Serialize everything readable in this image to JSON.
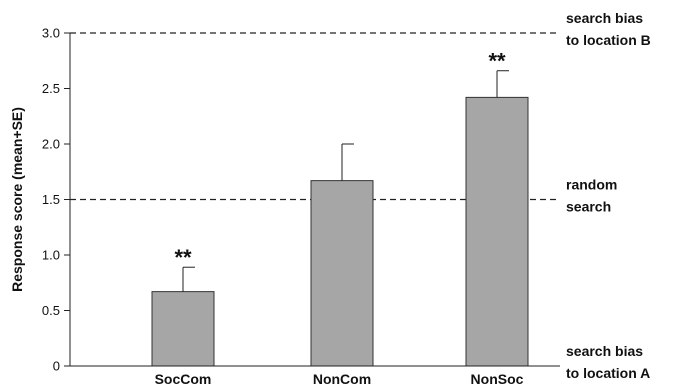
{
  "chart_data": {
    "type": "bar",
    "title": "",
    "xlabel": "",
    "ylabel": "Response score (mean+SE)",
    "categories": [
      "SocCom",
      "NonCom",
      "NonSoc"
    ],
    "values": [
      0.67,
      1.67,
      2.42
    ],
    "errors": [
      0.22,
      0.33,
      0.24
    ],
    "significance": [
      "**",
      "",
      "**"
    ],
    "ylim": [
      0,
      3.0
    ],
    "yticks": [
      {
        "value": 0,
        "label": "0"
      },
      {
        "value": 0.5,
        "label": "0.5"
      },
      {
        "value": 1.0,
        "label": "1.0"
      },
      {
        "value": 1.5,
        "label": "1.5"
      },
      {
        "value": 2.0,
        "label": "2.0"
      },
      {
        "value": 2.5,
        "label": "2.5"
      },
      {
        "value": 3.0,
        "label": "3.0"
      }
    ],
    "reference_lines": [
      {
        "value": 3.0,
        "style": "dashed",
        "label": [
          "search bias",
          "to location B"
        ]
      },
      {
        "value": 1.5,
        "style": "dashed",
        "label": [
          "random",
          "search"
        ]
      }
    ],
    "bottom_annotation": [
      "search bias",
      "to location A"
    ],
    "grid": false,
    "colors": {
      "bar": "#a6a6a6",
      "bar_stroke": "#333333",
      "axis": "#222222",
      "text": "#111111"
    }
  }
}
